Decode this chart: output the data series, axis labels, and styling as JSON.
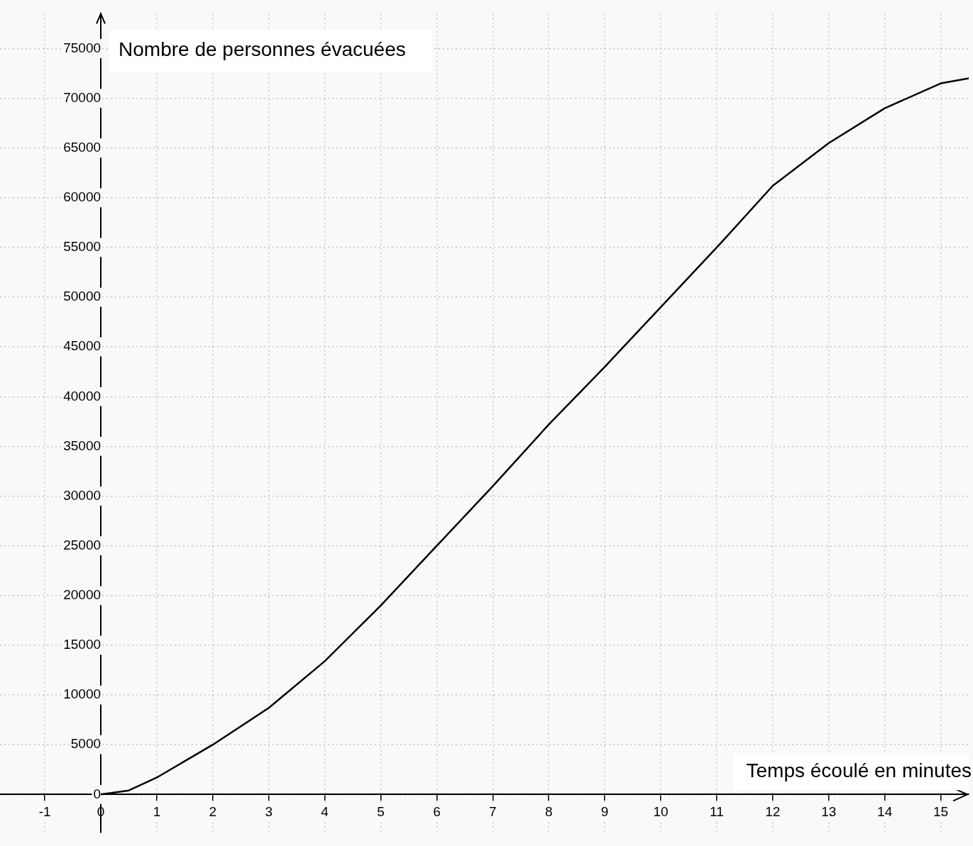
{
  "chart_data": {
    "type": "line",
    "xlabel": "Temps écoulé en minutes",
    "ylabel": "Nombre de personnes évacuées",
    "x": [
      0,
      0.5,
      1,
      2,
      3,
      4,
      5,
      6,
      7,
      8,
      9,
      10,
      11,
      12,
      13,
      14,
      15,
      15.5
    ],
    "series": [
      {
        "color": "#000000",
        "values": [
          0,
          400,
          1700,
          5000,
          8700,
          13400,
          19000,
          25000,
          31000,
          37200,
          43000,
          49000,
          55000,
          61200,
          65500,
          69000,
          71500,
          72000
        ]
      }
    ],
    "xlim": [
      -1.8,
      15.5
    ],
    "ylim": [
      -3800,
      78500
    ],
    "xticks": [
      -1,
      0,
      1,
      2,
      3,
      4,
      5,
      6,
      7,
      8,
      9,
      10,
      11,
      12,
      13,
      14,
      15
    ],
    "yticks": [
      0,
      5000,
      10000,
      15000,
      20000,
      25000,
      30000,
      35000,
      40000,
      45000,
      50000,
      55000,
      60000,
      65000,
      70000,
      75000
    ],
    "grid": true,
    "marker": "none",
    "line_style": "solid"
  }
}
